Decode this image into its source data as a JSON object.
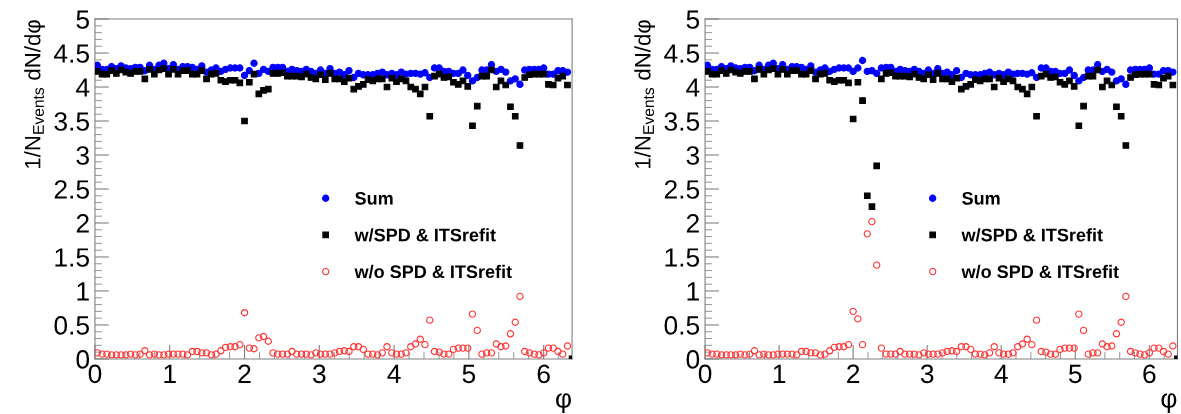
{
  "chart_data": [
    {
      "type": "scatter",
      "xlabel": "φ",
      "ylabel": "1/N$_{Events}$ dN/dφ",
      "xlim": [
        0,
        6.38
      ],
      "ylim": [
        0,
        5
      ],
      "xticks": [
        0,
        1,
        2,
        3,
        4,
        5,
        6
      ],
      "yticks": [
        0,
        0.5,
        1,
        1.5,
        2,
        2.5,
        3,
        3.5,
        4,
        4.5,
        5
      ],
      "legend": "center",
      "grid": false,
      "x": [
        0.032,
        0.095,
        0.159,
        0.222,
        0.286,
        0.349,
        0.413,
        0.476,
        0.54,
        0.603,
        0.667,
        0.73,
        0.794,
        0.857,
        0.921,
        0.984,
        1.048,
        1.111,
        1.175,
        1.238,
        1.302,
        1.365,
        1.429,
        1.492,
        1.556,
        1.619,
        1.683,
        1.746,
        1.81,
        1.873,
        1.937,
        2.0,
        2.064,
        2.127,
        2.191,
        2.254,
        2.318,
        2.381,
        2.445,
        2.508,
        2.572,
        2.635,
        2.699,
        2.762,
        2.826,
        2.889,
        2.953,
        3.016,
        3.08,
        3.143,
        3.207,
        3.27,
        3.334,
        3.397,
        3.461,
        3.524,
        3.588,
        3.651,
        3.715,
        3.778,
        3.842,
        3.905,
        3.969,
        4.032,
        4.096,
        4.159,
        4.223,
        4.286,
        4.35,
        4.413,
        4.477,
        4.54,
        4.604,
        4.667,
        4.731,
        4.794,
        4.858,
        4.921,
        4.985,
        5.048,
        5.112,
        5.175,
        5.239,
        5.302,
        5.366,
        5.429,
        5.493,
        5.556,
        5.62,
        5.683,
        5.747,
        5.81,
        5.874,
        5.937,
        6.001,
        6.064,
        6.128,
        6.191,
        6.255,
        6.318,
        6.38
      ],
      "series": [
        {
          "name": "Sum",
          "color": "#0000ff",
          "marker": "circle",
          "values": [
            4.32,
            4.26,
            4.26,
            4.3,
            4.27,
            4.31,
            4.28,
            4.27,
            4.29,
            4.29,
            4.24,
            4.32,
            4.26,
            4.32,
            4.35,
            4.27,
            4.33,
            4.26,
            4.3,
            4.3,
            4.29,
            4.26,
            4.31,
            4.22,
            4.25,
            4.28,
            4.23,
            4.26,
            4.28,
            4.28,
            4.28,
            4.17,
            4.24,
            4.35,
            4.2,
            4.26,
            4.23,
            4.29,
            4.29,
            4.29,
            4.23,
            4.26,
            4.24,
            4.23,
            4.26,
            4.23,
            4.2,
            4.25,
            4.2,
            4.27,
            4.2,
            4.22,
            4.18,
            4.24,
            4.14,
            4.2,
            4.18,
            4.18,
            4.18,
            4.2,
            4.22,
            4.18,
            4.2,
            4.18,
            4.22,
            4.19,
            4.2,
            4.2,
            4.19,
            4.21,
            4.14,
            4.28,
            4.28,
            4.23,
            4.23,
            4.2,
            4.2,
            4.25,
            4.17,
            4.09,
            4.14,
            4.25,
            4.25,
            4.33,
            4.23,
            4.26,
            4.22,
            4.09,
            4.12,
            4.04,
            4.25,
            4.26,
            4.26,
            4.26,
            4.28,
            4.19,
            4.19,
            4.24,
            4.24,
            4.22,
            null
          ]
        },
        {
          "name": "w/SPD & ITSrefit",
          "color": "#000000",
          "marker": "square",
          "values": [
            4.23,
            4.19,
            4.19,
            4.24,
            4.2,
            4.25,
            4.22,
            4.2,
            4.23,
            4.23,
            4.12,
            4.26,
            4.19,
            4.25,
            4.27,
            4.19,
            4.26,
            4.19,
            4.24,
            4.24,
            4.19,
            4.19,
            4.24,
            4.12,
            4.19,
            4.2,
            4.1,
            4.08,
            4.1,
            4.1,
            4.06,
            3.5,
            4.07,
            4.19,
            3.9,
            3.95,
            3.97,
            4.2,
            4.2,
            4.21,
            4.16,
            4.16,
            4.16,
            4.15,
            4.19,
            4.14,
            4.12,
            4.18,
            4.11,
            4.2,
            4.12,
            4.12,
            4.08,
            4.13,
            3.97,
            4.01,
            4.04,
            4.11,
            4.09,
            4.12,
            4.12,
            4.0,
            4.13,
            4.08,
            4.12,
            4.09,
            4.0,
            3.97,
            3.9,
            4.0,
            3.57,
            4.16,
            4.19,
            4.14,
            4.15,
            4.07,
            4.04,
            4.09,
            4.01,
            3.43,
            3.72,
            4.16,
            4.16,
            4.25,
            4.0,
            4.09,
            4.03,
            3.71,
            3.57,
            3.14,
            4.14,
            4.18,
            4.19,
            4.19,
            4.19,
            4.04,
            4.03,
            4.13,
            4.16,
            4.03,
            0
          ]
        },
        {
          "name": "w/o SPD & ITSrefit",
          "color": "#ff3333",
          "marker": "circle",
          "values": [
            0.09,
            0.07,
            0.07,
            0.06,
            0.06,
            0.06,
            0.06,
            0.07,
            0.06,
            0.07,
            0.12,
            0.06,
            0.07,
            0.06,
            0.06,
            0.07,
            0.07,
            0.07,
            0.07,
            0.06,
            0.11,
            0.11,
            0.09,
            0.09,
            0.06,
            0.07,
            0.12,
            0.17,
            0.18,
            0.18,
            0.21,
            0.68,
            0.16,
            0.15,
            0.31,
            0.33,
            0.26,
            0.09,
            0.07,
            0.07,
            0.07,
            0.11,
            0.07,
            0.07,
            0.07,
            0.06,
            0.09,
            0.07,
            0.07,
            0.07,
            0.09,
            0.11,
            0.12,
            0.11,
            0.18,
            0.18,
            0.14,
            0.07,
            0.07,
            0.06,
            0.09,
            0.18,
            0.09,
            0.07,
            0.07,
            0.09,
            0.18,
            0.22,
            0.29,
            0.21,
            0.57,
            0.11,
            0.1,
            0.07,
            0.07,
            0.14,
            0.16,
            0.16,
            0.16,
            0.66,
            0.42,
            0.07,
            0.09,
            0.09,
            0.22,
            0.18,
            0.19,
            0.37,
            0.54,
            0.92,
            0.11,
            0.09,
            0.07,
            0.06,
            0.09,
            0.16,
            0.16,
            0.11,
            0.07,
            0.19,
            null
          ]
        }
      ]
    },
    {
      "type": "scatter",
      "xlabel": "φ",
      "ylabel": "1/N$_{Events}$ dN/dφ",
      "xlim": [
        0,
        6.38
      ],
      "ylim": [
        0,
        5
      ],
      "xticks": [
        0,
        1,
        2,
        3,
        4,
        5,
        6
      ],
      "yticks": [
        0,
        0.5,
        1,
        1.5,
        2,
        2.5,
        3,
        3.5,
        4,
        4.5,
        5
      ],
      "legend": "center",
      "grid": false,
      "x": [
        0.032,
        0.095,
        0.159,
        0.222,
        0.286,
        0.349,
        0.413,
        0.476,
        0.54,
        0.603,
        0.667,
        0.73,
        0.794,
        0.857,
        0.921,
        0.984,
        1.048,
        1.111,
        1.175,
        1.238,
        1.302,
        1.365,
        1.429,
        1.492,
        1.556,
        1.619,
        1.683,
        1.746,
        1.81,
        1.873,
        1.937,
        2.0,
        2.064,
        2.127,
        2.191,
        2.254,
        2.318,
        2.381,
        2.445,
        2.508,
        2.572,
        2.635,
        2.699,
        2.762,
        2.826,
        2.889,
        2.953,
        3.016,
        3.08,
        3.143,
        3.207,
        3.27,
        3.334,
        3.397,
        3.461,
        3.524,
        3.588,
        3.651,
        3.715,
        3.778,
        3.842,
        3.905,
        3.969,
        4.032,
        4.096,
        4.159,
        4.223,
        4.286,
        4.35,
        4.413,
        4.477,
        4.54,
        4.604,
        4.667,
        4.731,
        4.794,
        4.858,
        4.921,
        4.985,
        5.048,
        5.112,
        5.175,
        5.239,
        5.302,
        5.366,
        5.429,
        5.493,
        5.556,
        5.62,
        5.683,
        5.747,
        5.81,
        5.874,
        5.937,
        6.001,
        6.064,
        6.128,
        6.191,
        6.255,
        6.318,
        6.38
      ],
      "series": [
        {
          "name": "Sum",
          "color": "#0000ff",
          "marker": "circle",
          "values": [
            4.32,
            4.26,
            4.26,
            4.3,
            4.27,
            4.31,
            4.28,
            4.27,
            4.29,
            4.29,
            4.24,
            4.32,
            4.26,
            4.32,
            4.35,
            4.27,
            4.33,
            4.26,
            4.3,
            4.3,
            4.29,
            4.26,
            4.31,
            4.22,
            4.25,
            4.28,
            4.23,
            4.26,
            4.28,
            4.28,
            4.28,
            4.23,
            4.28,
            4.39,
            4.23,
            4.24,
            4.2,
            4.28,
            4.29,
            4.29,
            4.23,
            4.26,
            4.24,
            4.23,
            4.26,
            4.23,
            4.2,
            4.25,
            4.2,
            4.27,
            4.2,
            4.22,
            4.18,
            4.24,
            4.14,
            4.2,
            4.18,
            4.18,
            4.18,
            4.2,
            4.22,
            4.18,
            4.2,
            4.18,
            4.22,
            4.19,
            4.2,
            4.2,
            4.19,
            4.21,
            4.14,
            4.28,
            4.28,
            4.23,
            4.23,
            4.2,
            4.2,
            4.25,
            4.17,
            4.09,
            4.14,
            4.25,
            4.25,
            4.33,
            4.23,
            4.26,
            4.22,
            4.09,
            4.12,
            4.04,
            4.25,
            4.26,
            4.26,
            4.26,
            4.28,
            4.19,
            4.19,
            4.24,
            4.24,
            4.22,
            null
          ]
        },
        {
          "name": "w/SPD & ITSrefit",
          "color": "#000000",
          "marker": "square",
          "values": [
            4.23,
            4.19,
            4.19,
            4.24,
            4.2,
            4.25,
            4.22,
            4.2,
            4.23,
            4.23,
            4.12,
            4.26,
            4.19,
            4.25,
            4.27,
            4.19,
            4.26,
            4.19,
            4.24,
            4.24,
            4.19,
            4.19,
            4.24,
            4.12,
            4.19,
            4.2,
            4.1,
            4.08,
            4.1,
            4.1,
            4.06,
            3.53,
            4.07,
            3.8,
            2.4,
            2.24,
            2.84,
            4.12,
            4.2,
            4.21,
            4.16,
            4.16,
            4.16,
            4.15,
            4.19,
            4.14,
            4.12,
            4.18,
            4.11,
            4.2,
            4.12,
            4.12,
            4.08,
            4.13,
            3.97,
            4.01,
            4.04,
            4.11,
            4.09,
            4.12,
            4.12,
            4.0,
            4.13,
            4.08,
            4.12,
            4.09,
            4.0,
            3.97,
            3.9,
            4.0,
            3.57,
            4.16,
            4.19,
            4.14,
            4.15,
            4.07,
            4.04,
            4.09,
            4.01,
            3.43,
            3.72,
            4.16,
            4.16,
            4.25,
            4.0,
            4.09,
            4.03,
            3.71,
            3.57,
            3.14,
            4.14,
            4.18,
            4.19,
            4.19,
            4.19,
            4.04,
            4.03,
            4.13,
            4.16,
            4.03,
            0
          ]
        },
        {
          "name": "w/o SPD & ITSrefit",
          "color": "#ff3333",
          "marker": "circle",
          "values": [
            0.09,
            0.07,
            0.07,
            0.06,
            0.06,
            0.06,
            0.06,
            0.07,
            0.06,
            0.07,
            0.12,
            0.06,
            0.07,
            0.06,
            0.06,
            0.07,
            0.07,
            0.07,
            0.07,
            0.06,
            0.11,
            0.11,
            0.09,
            0.09,
            0.06,
            0.07,
            0.12,
            0.17,
            0.18,
            0.18,
            0.21,
            0.7,
            0.59,
            0.21,
            1.84,
            2.02,
            1.38,
            0.16,
            0.07,
            0.07,
            0.07,
            0.11,
            0.07,
            0.07,
            0.07,
            0.06,
            0.09,
            0.07,
            0.07,
            0.07,
            0.09,
            0.11,
            0.12,
            0.11,
            0.18,
            0.18,
            0.14,
            0.07,
            0.07,
            0.06,
            0.09,
            0.18,
            0.09,
            0.07,
            0.07,
            0.09,
            0.18,
            0.22,
            0.29,
            0.21,
            0.57,
            0.11,
            0.1,
            0.07,
            0.07,
            0.14,
            0.16,
            0.16,
            0.16,
            0.66,
            0.42,
            0.07,
            0.09,
            0.09,
            0.22,
            0.18,
            0.19,
            0.37,
            0.54,
            0.92,
            0.11,
            0.09,
            0.07,
            0.06,
            0.09,
            0.16,
            0.16,
            0.11,
            0.07,
            0.19,
            null
          ]
        }
      ]
    }
  ]
}
